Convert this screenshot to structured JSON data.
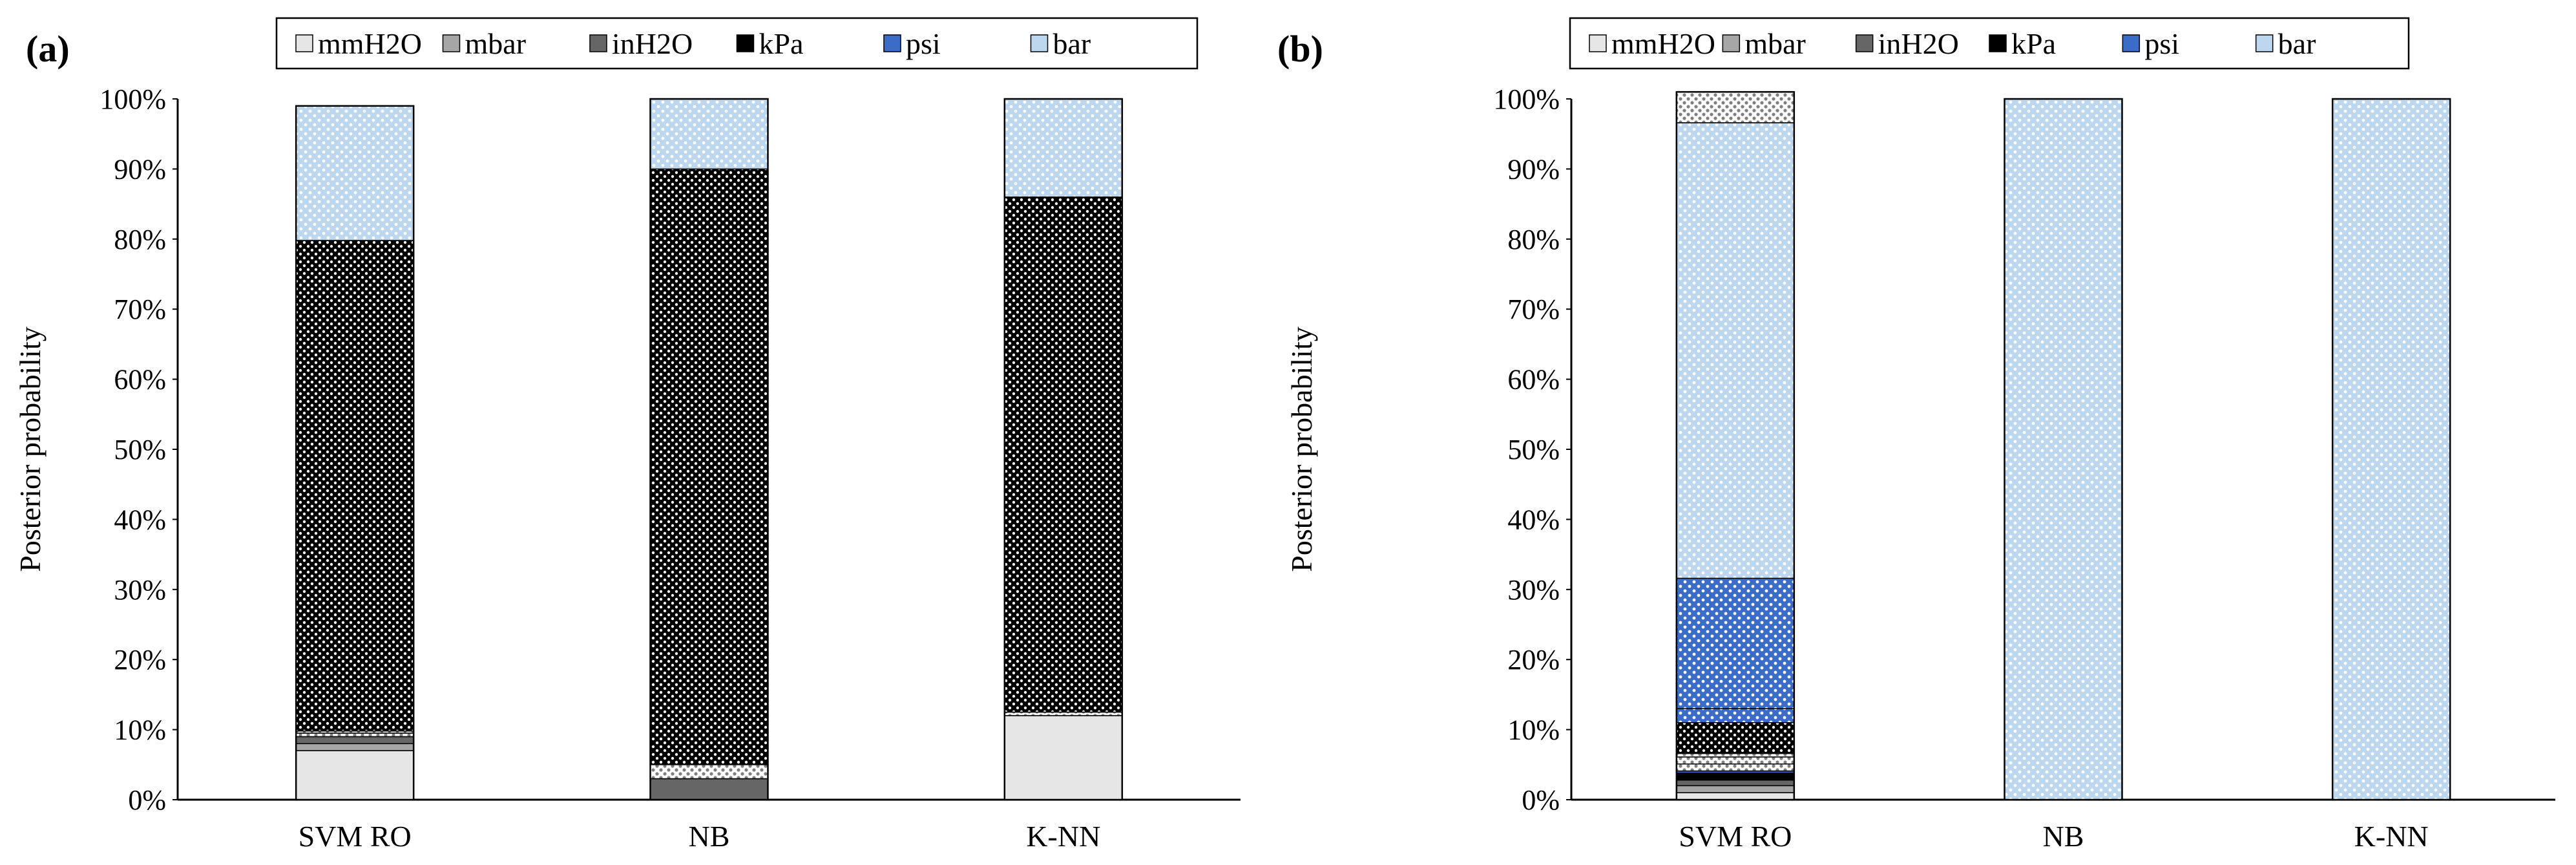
{
  "chart_data": [
    {
      "panel_label": "(a)",
      "type": "bar",
      "stacked": true,
      "ylabel": "Posterior probability",
      "xlabel": "",
      "ylim": [
        0,
        100
      ],
      "ytick_labels": [
        "0%",
        "10%",
        "20%",
        "30%",
        "40%",
        "50%",
        "60%",
        "70%",
        "80%",
        "90%",
        "100%"
      ],
      "categories": [
        "SVM RO",
        "NB",
        "K-NN"
      ],
      "legend_position": "top",
      "series": [
        {
          "name": "mmH2O",
          "color": "#e6e6e6",
          "values": [
            7,
            0,
            12
          ]
        },
        {
          "name": "mbar",
          "color": "#a6a6a6",
          "values": [
            1,
            0,
            0
          ]
        },
        {
          "name": "inH2O",
          "color": "#666666",
          "values": [
            1,
            3,
            0
          ]
        },
        {
          "name": "kPa",
          "color": "#000000",
          "values": [
            0,
            0,
            0
          ]
        },
        {
          "name": "psi",
          "color": "#3a6cc8",
          "values": [
            0,
            0,
            0
          ]
        },
        {
          "name": "bar",
          "color": "#bdd7ee",
          "values": [
            0,
            0,
            0
          ]
        },
        {
          "name": "mmH2O (pattern)",
          "color": "#e6e6e6",
          "pattern": "dots",
          "values": [
            0.5,
            2,
            0.5
          ]
        },
        {
          "name": "mbar (pattern)",
          "color": "#a6a6a6",
          "pattern": "dots",
          "values": [
            0,
            0,
            0
          ]
        },
        {
          "name": "inH2O (pattern)",
          "color": "#666666",
          "pattern": "dots",
          "values": [
            0.3,
            0,
            0
          ]
        },
        {
          "name": "kPa (pattern)",
          "color": "#000000",
          "pattern": "dots",
          "values": [
            70,
            85,
            73.5
          ]
        },
        {
          "name": "psi (pattern)",
          "color": "#3a6cc8",
          "pattern": "dots",
          "values": [
            0,
            0,
            0
          ]
        },
        {
          "name": "bar (pattern)",
          "color": "#bdd7ee",
          "pattern": "dots",
          "values": [
            19.2,
            10,
            14
          ]
        }
      ],
      "legend": [
        "mmH2O",
        "mbar",
        "inH2O",
        "kPa",
        "psi",
        "bar"
      ]
    },
    {
      "panel_label": "(b)",
      "type": "bar",
      "stacked": true,
      "ylabel": "Posterior probability",
      "xlabel": "",
      "ylim": [
        0,
        100
      ],
      "ytick_labels": [
        "0%",
        "10%",
        "20%",
        "30%",
        "40%",
        "50%",
        "60%",
        "70%",
        "80%",
        "90%",
        "100%"
      ],
      "categories": [
        "SVM RO",
        "NB",
        "K-NN"
      ],
      "legend_position": "top",
      "series": [
        {
          "name": "mmH2O",
          "color": "#e6e6e6",
          "values": [
            1,
            0,
            0
          ]
        },
        {
          "name": "mbar",
          "color": "#a6a6a6",
          "values": [
            1,
            0,
            0
          ]
        },
        {
          "name": "inH2O",
          "color": "#666666",
          "values": [
            0.8,
            0,
            0
          ]
        },
        {
          "name": "kPa",
          "color": "#000000",
          "values": [
            1,
            0,
            0
          ]
        },
        {
          "name": "psi",
          "color": "#3a6cc8",
          "values": [
            0.3,
            0,
            0
          ]
        },
        {
          "name": "bar",
          "color": "#bdd7ee",
          "values": [
            0,
            0,
            0
          ]
        },
        {
          "name": "mmH2O (pattern)",
          "color": "#e6e6e6",
          "pattern": "dots",
          "values": [
            1,
            0,
            0
          ]
        },
        {
          "name": "mbar (pattern)",
          "color": "#a6a6a6",
          "pattern": "dots",
          "values": [
            1,
            0,
            0
          ]
        },
        {
          "name": "inH2O (pattern)",
          "color": "#666666",
          "pattern": "dots",
          "values": [
            0.5,
            0,
            0
          ]
        },
        {
          "name": "kPa (pattern)",
          "color": "#000000",
          "pattern": "dots",
          "values": [
            4.4,
            0,
            0
          ]
        },
        {
          "name": "psi (pattern)",
          "color": "#3a6cc8",
          "pattern": "dots",
          "values": [
            2,
            0,
            0
          ]
        },
        {
          "name": "psi (light pattern)",
          "color": "#3a6cc8",
          "pattern": "dots-light",
          "values": [
            18.6,
            0,
            0
          ]
        },
        {
          "name": "bar (pattern)",
          "color": "#bdd7ee",
          "pattern": "dots",
          "values": [
            65,
            100,
            100
          ]
        },
        {
          "name": "bar (light pattern)",
          "color": "#bdd7ee",
          "pattern": "dots-light",
          "values": [
            4.4,
            0,
            0
          ]
        }
      ],
      "legend": [
        "mmH2O",
        "mbar",
        "inH2O",
        "kPa",
        "psi",
        "bar"
      ]
    }
  ]
}
